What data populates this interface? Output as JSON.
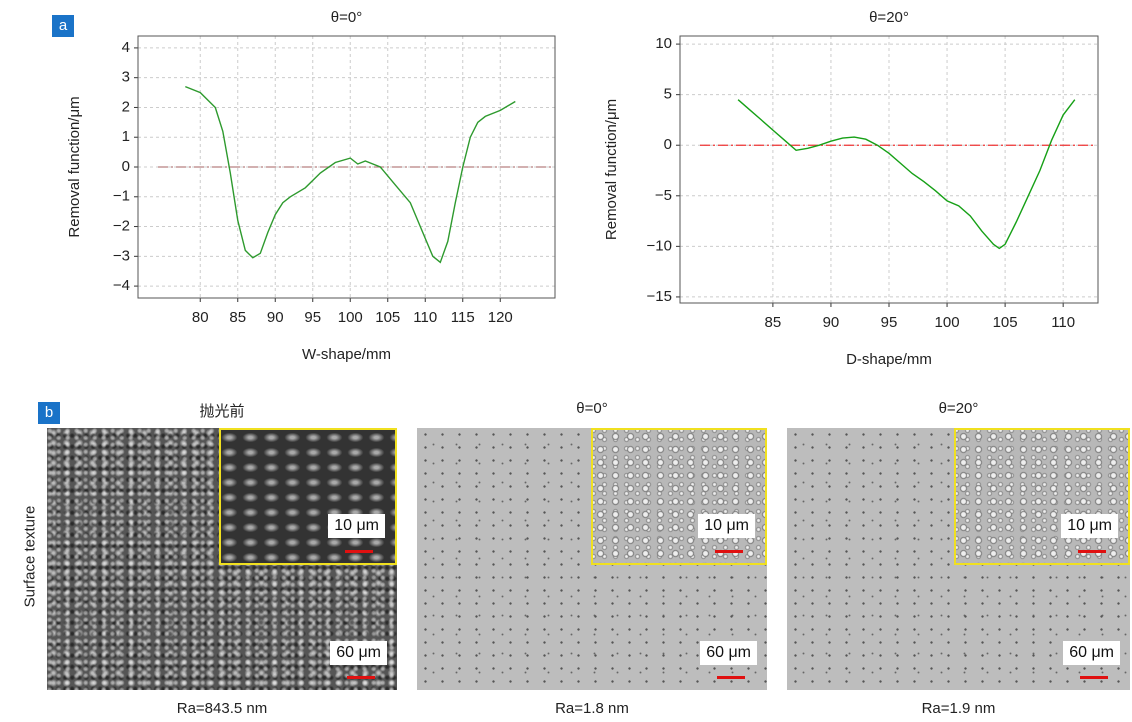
{
  "panel_a": {
    "label": "a"
  },
  "chart_data": [
    {
      "type": "line",
      "title": "θ=0°",
      "x_label": "W-shape/mm",
      "y_label": "Removal function/μm",
      "x": [
        78,
        80,
        82,
        83,
        84,
        85,
        86,
        87,
        88,
        89,
        90,
        91,
        92,
        94,
        96,
        98,
        100,
        101,
        102,
        104,
        106,
        108,
        110,
        111,
        112,
        113,
        114,
        115,
        116,
        117,
        118,
        120,
        122
      ],
      "values": [
        2.7,
        2.5,
        2.0,
        1.2,
        -0.2,
        -1.8,
        -2.8,
        -3.05,
        -2.9,
        -2.2,
        -1.6,
        -1.2,
        -1.0,
        -0.7,
        -0.2,
        0.15,
        0.3,
        0.1,
        0.2,
        0.0,
        -0.6,
        -1.2,
        -2.4,
        -3.0,
        -3.2,
        -2.5,
        -1.2,
        0.0,
        1.0,
        1.5,
        1.7,
        1.9,
        2.2
      ],
      "color": "#2e9a2e",
      "reference_line": {
        "value": 0,
        "color": "#b88080"
      },
      "xlim": [
        71.7,
        127.3
      ],
      "ylim": [
        -4.4,
        4.4
      ],
      "xticks": [
        80,
        85,
        90,
        95,
        100,
        105,
        110,
        115,
        120
      ],
      "yticks": [
        {
          "value": -4,
          "label": "−4"
        },
        {
          "value": -3,
          "label": "−3"
        },
        {
          "value": -2,
          "label": "−2"
        },
        {
          "value": -1,
          "label": "−1"
        },
        0,
        1,
        2,
        3,
        4
      ],
      "grid": true
    },
    {
      "type": "line",
      "title": "θ=20°",
      "x_label": "D-shape/mm",
      "y_label": "Removal function/μm",
      "x": [
        82,
        83,
        84,
        85,
        86,
        87,
        88,
        89,
        90,
        91,
        92,
        93,
        94,
        95,
        96,
        97,
        98,
        99,
        100,
        101,
        102,
        103,
        104,
        104.5,
        105,
        106,
        107,
        108,
        109,
        110,
        111
      ],
      "values": [
        4.5,
        3.5,
        2.5,
        1.5,
        0.5,
        -0.5,
        -0.3,
        0,
        0.4,
        0.7,
        0.8,
        0.6,
        0,
        -0.8,
        -1.8,
        -2.8,
        -3.6,
        -4.5,
        -5.5,
        -6.0,
        -7.0,
        -8.5,
        -9.8,
        -10.2,
        -9.8,
        -7.5,
        -5.0,
        -2.5,
        0.5,
        3.0,
        4.5
      ],
      "color": "#16a016",
      "reference_line": {
        "value": 0,
        "color": "#ee3333"
      },
      "xlim": [
        77.0,
        113.0
      ],
      "ylim": [
        -15.6,
        10.8
      ],
      "xticks": [
        85,
        90,
        95,
        100,
        105,
        110
      ],
      "yticks": [
        {
          "value": -15,
          "label": "−15"
        },
        {
          "value": -10,
          "label": "−10"
        },
        {
          "value": -5,
          "label": "−5"
        },
        0,
        5,
        10
      ],
      "grid": true
    }
  ],
  "panel_b": {
    "label": "b",
    "row_label": "Surface texture",
    "images": [
      {
        "title": "抛光前",
        "inset_scale": "10 μm",
        "scale": "60 μm",
        "caption": "Ra=843.5 nm"
      },
      {
        "title": "θ=0°",
        "inset_scale": "10 μm",
        "scale": "60 μm",
        "caption": "Ra=1.8 nm"
      },
      {
        "title": "θ=20°",
        "inset_scale": "10 μm",
        "scale": "60 μm",
        "caption": "Ra=1.9 nm"
      }
    ]
  }
}
